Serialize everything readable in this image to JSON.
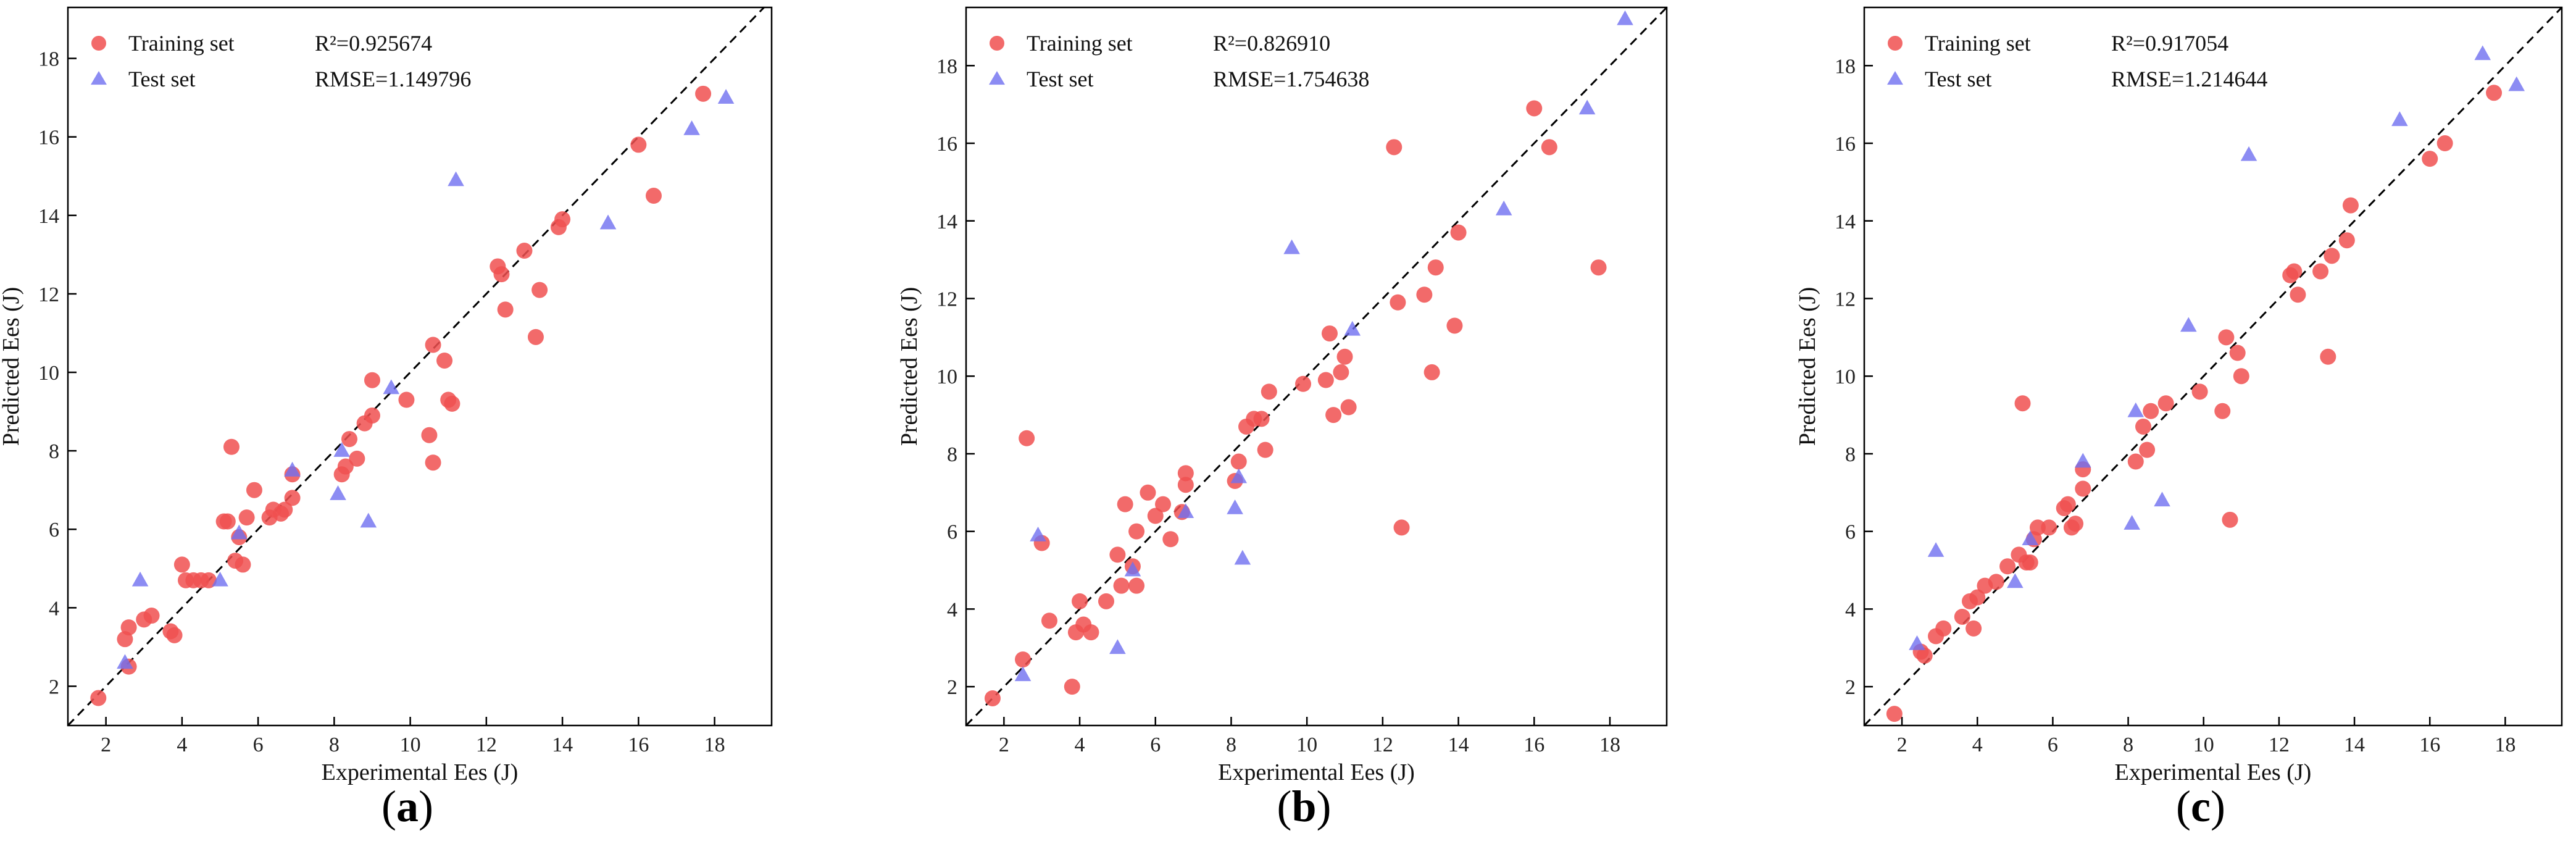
{
  "chart_data": [
    {
      "type": "scatter",
      "panel_label": "a",
      "xlabel": "Experimental Ees (J)",
      "ylabel": "Predicted Ees (J)",
      "xlim": [
        1,
        19.5
      ],
      "ylim": [
        1,
        19.3
      ],
      "xticks": [
        2,
        4,
        6,
        8,
        10,
        12,
        14,
        16,
        18
      ],
      "yticks": [
        2,
        4,
        6,
        8,
        10,
        12,
        14,
        16,
        18
      ],
      "diagonal": true,
      "stats": {
        "r2": "R²=0.925674",
        "rmse": "RMSE=1.149796"
      },
      "series": [
        {
          "name": "Training set",
          "marker": "circle",
          "color": "#f05050",
          "points": [
            [
              1.8,
              1.7
            ],
            [
              2.5,
              3.2
            ],
            [
              2.6,
              3.5
            ],
            [
              2.6,
              2.5
            ],
            [
              3.0,
              3.7
            ],
            [
              3.2,
              3.8
            ],
            [
              3.7,
              3.4
            ],
            [
              3.8,
              3.3
            ],
            [
              4.0,
              5.1
            ],
            [
              4.1,
              4.7
            ],
            [
              4.3,
              4.7
            ],
            [
              4.5,
              4.7
            ],
            [
              4.7,
              4.7
            ],
            [
              5.1,
              6.2
            ],
            [
              5.2,
              6.2
            ],
            [
              5.3,
              8.1
            ],
            [
              5.4,
              5.2
            ],
            [
              5.5,
              5.8
            ],
            [
              5.6,
              5.1
            ],
            [
              5.7,
              6.3
            ],
            [
              5.9,
              7.0
            ],
            [
              6.3,
              6.3
            ],
            [
              6.4,
              6.5
            ],
            [
              6.6,
              6.4
            ],
            [
              6.7,
              6.5
            ],
            [
              6.9,
              6.8
            ],
            [
              6.9,
              7.4
            ],
            [
              8.2,
              7.4
            ],
            [
              8.3,
              7.6
            ],
            [
              8.4,
              8.3
            ],
            [
              8.6,
              7.8
            ],
            [
              8.8,
              8.7
            ],
            [
              9.0,
              8.9
            ],
            [
              9.0,
              9.8
            ],
            [
              9.9,
              9.3
            ],
            [
              10.5,
              8.4
            ],
            [
              10.6,
              7.7
            ],
            [
              10.6,
              10.7
            ],
            [
              10.9,
              10.3
            ],
            [
              11.0,
              9.3
            ],
            [
              11.1,
              9.2
            ],
            [
              12.3,
              12.7
            ],
            [
              12.4,
              12.5
            ],
            [
              12.5,
              11.6
            ],
            [
              13.0,
              13.1
            ],
            [
              13.3,
              10.9
            ],
            [
              13.4,
              12.1
            ],
            [
              13.9,
              13.7
            ],
            [
              14.0,
              13.9
            ],
            [
              16.0,
              15.8
            ],
            [
              16.4,
              14.5
            ],
            [
              17.7,
              17.1
            ]
          ]
        },
        {
          "name": "Test set",
          "marker": "triangle",
          "color": "#6f6ff0",
          "points": [
            [
              2.5,
              2.6
            ],
            [
              2.9,
              4.7
            ],
            [
              5.0,
              4.7
            ],
            [
              5.5,
              5.9
            ],
            [
              6.9,
              7.5
            ],
            [
              8.1,
              6.9
            ],
            [
              8.2,
              8.0
            ],
            [
              8.9,
              6.2
            ],
            [
              9.5,
              9.6
            ],
            [
              11.2,
              14.9
            ],
            [
              15.2,
              13.8
            ],
            [
              17.4,
              16.2
            ],
            [
              18.3,
              17.0
            ]
          ]
        }
      ]
    },
    {
      "type": "scatter",
      "panel_label": "b",
      "xlabel": "Experimental Ees (J)",
      "ylabel": "Predicted Ees (J)",
      "xlim": [
        1,
        19.5
      ],
      "ylim": [
        1,
        19.5
      ],
      "xticks": [
        2,
        4,
        6,
        8,
        10,
        12,
        14,
        16,
        18
      ],
      "yticks": [
        2,
        4,
        6,
        8,
        10,
        12,
        14,
        16,
        18
      ],
      "diagonal": true,
      "stats": {
        "r2": "R²=0.826910",
        "rmse": "RMSE=1.754638"
      },
      "series": [
        {
          "name": "Training set",
          "marker": "circle",
          "color": "#f05050",
          "points": [
            [
              1.7,
              1.7
            ],
            [
              2.5,
              2.7
            ],
            [
              2.6,
              8.4
            ],
            [
              3.0,
              5.7
            ],
            [
              3.2,
              3.7
            ],
            [
              3.8,
              2.0
            ],
            [
              3.9,
              3.4
            ],
            [
              4.0,
              4.2
            ],
            [
              4.1,
              3.6
            ],
            [
              4.3,
              3.4
            ],
            [
              4.7,
              4.2
            ],
            [
              5.0,
              5.4
            ],
            [
              5.1,
              4.6
            ],
            [
              5.2,
              6.7
            ],
            [
              5.4,
              5.1
            ],
            [
              5.5,
              4.6
            ],
            [
              5.5,
              6.0
            ],
            [
              5.8,
              7.0
            ],
            [
              6.0,
              6.4
            ],
            [
              6.2,
              6.7
            ],
            [
              6.4,
              5.8
            ],
            [
              6.7,
              6.5
            ],
            [
              6.8,
              7.2
            ],
            [
              6.8,
              7.5
            ],
            [
              8.1,
              7.3
            ],
            [
              8.2,
              7.8
            ],
            [
              8.4,
              8.7
            ],
            [
              8.6,
              8.9
            ],
            [
              8.8,
              8.9
            ],
            [
              8.9,
              8.1
            ],
            [
              9.0,
              9.6
            ],
            [
              9.9,
              9.8
            ],
            [
              10.5,
              9.9
            ],
            [
              10.6,
              11.1
            ],
            [
              10.7,
              9.0
            ],
            [
              10.9,
              10.1
            ],
            [
              11.0,
              10.5
            ],
            [
              11.1,
              9.2
            ],
            [
              12.3,
              15.9
            ],
            [
              12.4,
              11.9
            ],
            [
              12.5,
              6.1
            ],
            [
              13.1,
              12.1
            ],
            [
              13.3,
              10.1
            ],
            [
              13.4,
              12.8
            ],
            [
              13.9,
              11.3
            ],
            [
              14.0,
              13.7
            ],
            [
              16.0,
              16.9
            ],
            [
              16.4,
              15.9
            ],
            [
              17.7,
              12.8
            ]
          ]
        },
        {
          "name": "Test set",
          "marker": "triangle",
          "color": "#6f6ff0",
          "points": [
            [
              2.5,
              2.3
            ],
            [
              2.9,
              5.9
            ],
            [
              5.0,
              3.0
            ],
            [
              5.4,
              5.0
            ],
            [
              6.8,
              6.5
            ],
            [
              8.1,
              6.6
            ],
            [
              8.2,
              7.4
            ],
            [
              8.3,
              5.3
            ],
            [
              9.6,
              13.3
            ],
            [
              11.2,
              11.2
            ],
            [
              15.2,
              14.3
            ],
            [
              17.4,
              16.9
            ],
            [
              18.4,
              19.2
            ]
          ]
        }
      ]
    },
    {
      "type": "scatter",
      "panel_label": "c",
      "xlabel": "Experimental Ees (J)",
      "ylabel": "Predicted Ees (J)",
      "xlim": [
        1,
        19.5
      ],
      "ylim": [
        1,
        19.5
      ],
      "xticks": [
        2,
        4,
        6,
        8,
        10,
        12,
        14,
        16,
        18
      ],
      "yticks": [
        2,
        4,
        6,
        8,
        10,
        12,
        14,
        16,
        18
      ],
      "diagonal": true,
      "stats": {
        "r2": "R²=0.917054",
        "rmse": "RMSE=1.214644"
      },
      "series": [
        {
          "name": "Training set",
          "marker": "circle",
          "color": "#f05050",
          "points": [
            [
              1.8,
              1.3
            ],
            [
              2.5,
              2.9
            ],
            [
              2.6,
              2.8
            ],
            [
              2.9,
              3.3
            ],
            [
              3.1,
              3.5
            ],
            [
              3.6,
              3.8
            ],
            [
              3.8,
              4.2
            ],
            [
              3.9,
              3.5
            ],
            [
              4.0,
              4.3
            ],
            [
              4.2,
              4.6
            ],
            [
              4.5,
              4.7
            ],
            [
              4.8,
              5.1
            ],
            [
              5.1,
              5.4
            ],
            [
              5.2,
              9.3
            ],
            [
              5.3,
              5.2
            ],
            [
              5.4,
              5.2
            ],
            [
              5.5,
              5.8
            ],
            [
              5.6,
              6.1
            ],
            [
              5.9,
              6.1
            ],
            [
              6.3,
              6.6
            ],
            [
              6.4,
              6.7
            ],
            [
              6.5,
              6.1
            ],
            [
              6.6,
              6.2
            ],
            [
              6.8,
              7.1
            ],
            [
              6.8,
              7.6
            ],
            [
              8.2,
              7.8
            ],
            [
              8.4,
              8.7
            ],
            [
              8.5,
              8.1
            ],
            [
              8.6,
              9.1
            ],
            [
              9.0,
              9.3
            ],
            [
              9.9,
              9.6
            ],
            [
              10.5,
              9.1
            ],
            [
              10.6,
              11.0
            ],
            [
              10.7,
              6.3
            ],
            [
              10.9,
              10.6
            ],
            [
              11.0,
              10.0
            ],
            [
              12.3,
              12.6
            ],
            [
              12.4,
              12.7
            ],
            [
              12.5,
              12.1
            ],
            [
              13.1,
              12.7
            ],
            [
              13.3,
              10.5
            ],
            [
              13.4,
              13.1
            ],
            [
              13.8,
              13.5
            ],
            [
              13.9,
              14.4
            ],
            [
              16.0,
              15.6
            ],
            [
              16.4,
              16.0
            ],
            [
              17.7,
              17.3
            ]
          ]
        },
        {
          "name": "Test set",
          "marker": "triangle",
          "color": "#6f6ff0",
          "points": [
            [
              2.4,
              3.1
            ],
            [
              2.9,
              5.5
            ],
            [
              5.0,
              4.7
            ],
            [
              5.4,
              5.8
            ],
            [
              6.8,
              7.8
            ],
            [
              8.1,
              6.2
            ],
            [
              8.2,
              9.1
            ],
            [
              8.9,
              6.8
            ],
            [
              9.6,
              11.3
            ],
            [
              11.2,
              15.7
            ],
            [
              15.2,
              16.6
            ],
            [
              17.4,
              18.3
            ],
            [
              18.3,
              17.5
            ]
          ]
        }
      ]
    }
  ]
}
